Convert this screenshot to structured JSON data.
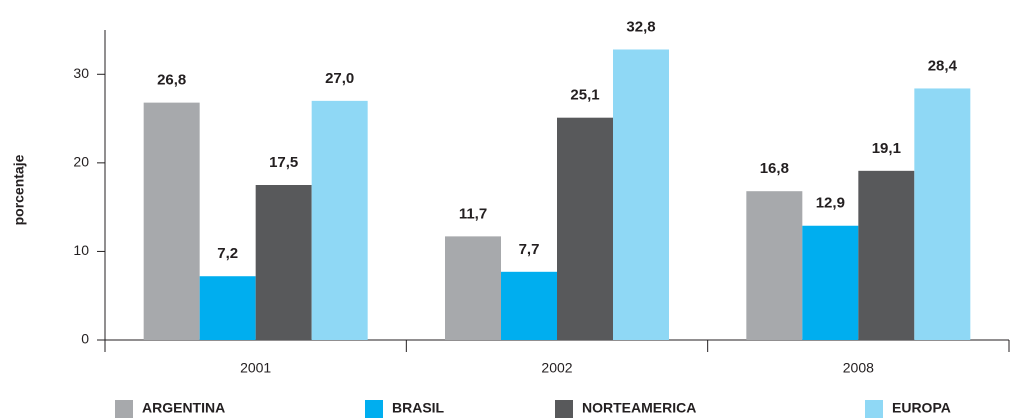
{
  "chart_data": {
    "type": "bar",
    "y_label": "porcentaje",
    "categories": [
      "2001",
      "2002",
      "2008"
    ],
    "series": [
      {
        "name": "ARGENTINA",
        "color": "#a7a9ac",
        "values": [
          26.8,
          11.7,
          16.8
        ],
        "value_labels": [
          "26,8",
          "11,7",
          "16,8"
        ]
      },
      {
        "name": "BRASIL",
        "color": "#00aeef",
        "values": [
          7.2,
          7.7,
          12.9
        ],
        "value_labels": [
          "7,2",
          "7,7",
          "12,9"
        ]
      },
      {
        "name": "NORTEAMERICA",
        "color": "#58595b",
        "values": [
          17.5,
          25.1,
          19.1
        ],
        "value_labels": [
          "17,5",
          "25,1",
          "19,1"
        ]
      },
      {
        "name": "EUROPA",
        "color": "#8fd8f5",
        "values": [
          27.0,
          32.8,
          28.4
        ],
        "value_labels": [
          "27,0",
          "32,8",
          "28,4"
        ]
      }
    ],
    "ylim": [
      0,
      35
    ],
    "yticks": [
      0,
      10,
      20,
      30
    ],
    "grid": false
  }
}
